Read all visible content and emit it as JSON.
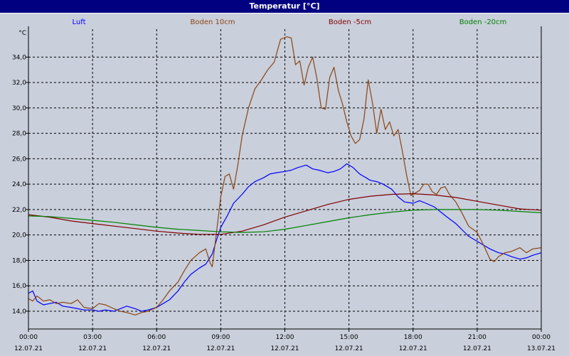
{
  "window": {
    "title": "Temperatur [°C]"
  },
  "colors": {
    "luft": "#0000ff",
    "boden_10": "#8b4513",
    "boden_5": "#800000",
    "boden_20": "#008000",
    "grid": "#000000",
    "background": "#c9cfdb"
  },
  "chart_data": {
    "type": "line",
    "title": "Temperatur [°C]",
    "ylabel": "°C",
    "xlabel": "",
    "ylim": [
      12.6,
      36.2
    ],
    "xlim": [
      0,
      24
    ],
    "grid": true,
    "legend_position": "top",
    "yticks": [
      {
        "v": 14,
        "label": "14,0"
      },
      {
        "v": 16,
        "label": "16,0"
      },
      {
        "v": 18,
        "label": "18,0"
      },
      {
        "v": 20,
        "label": "20,0"
      },
      {
        "v": 22,
        "label": "22,0"
      },
      {
        "v": 24,
        "label": "24,0"
      },
      {
        "v": 26,
        "label": "26,0"
      },
      {
        "v": 28,
        "label": "28,0"
      },
      {
        "v": 30,
        "label": "30,0"
      },
      {
        "v": 32,
        "label": "32,0"
      },
      {
        "v": 34,
        "label": "34,0"
      }
    ],
    "xticks": [
      {
        "h": 0,
        "time": "00:00",
        "date": "12.07.21"
      },
      {
        "h": 3,
        "time": "03:00",
        "date": "12.07.21"
      },
      {
        "h": 6,
        "time": "06:00",
        "date": "12.07.21"
      },
      {
        "h": 9,
        "time": "09:00",
        "date": "12.07.21"
      },
      {
        "h": 12,
        "time": "12:00",
        "date": "12.07.21"
      },
      {
        "h": 15,
        "time": "15:00",
        "date": "12.07.21"
      },
      {
        "h": 18,
        "time": "18:00",
        "date": "12.07.21"
      },
      {
        "h": 21,
        "time": "21:00",
        "date": "12.07.21"
      },
      {
        "h": 24,
        "time": "00:00",
        "date": "13.07.21"
      }
    ],
    "series": [
      {
        "name": "Luft",
        "color": "#0000ff",
        "points": [
          [
            0,
            15.4
          ],
          [
            0.2,
            15.6
          ],
          [
            0.4,
            14.8
          ],
          [
            0.7,
            14.5
          ],
          [
            1,
            14.6
          ],
          [
            1.3,
            14.7
          ],
          [
            1.6,
            14.4
          ],
          [
            2,
            14.3
          ],
          [
            2.3,
            14.2
          ],
          [
            2.6,
            14.1
          ],
          [
            3,
            14.1
          ],
          [
            3.3,
            14.0
          ],
          [
            3.6,
            14.1
          ],
          [
            4,
            14.0
          ],
          [
            4.3,
            14.2
          ],
          [
            4.6,
            14.4
          ],
          [
            5,
            14.2
          ],
          [
            5.3,
            14.0
          ],
          [
            5.6,
            14.1
          ],
          [
            6,
            14.3
          ],
          [
            6.3,
            14.6
          ],
          [
            6.6,
            14.9
          ],
          [
            7,
            15.6
          ],
          [
            7.3,
            16.3
          ],
          [
            7.6,
            16.9
          ],
          [
            8,
            17.4
          ],
          [
            8.3,
            17.7
          ],
          [
            8.6,
            18.5
          ],
          [
            8.8,
            19.6
          ],
          [
            9,
            20.6
          ],
          [
            9.3,
            21.5
          ],
          [
            9.6,
            22.5
          ],
          [
            10,
            23.2
          ],
          [
            10.3,
            23.8
          ],
          [
            10.6,
            24.2
          ],
          [
            11,
            24.5
          ],
          [
            11.3,
            24.8
          ],
          [
            11.6,
            24.9
          ],
          [
            12,
            25.0
          ],
          [
            12.3,
            25.1
          ],
          [
            12.6,
            25.3
          ],
          [
            13,
            25.5
          ],
          [
            13.3,
            25.2
          ],
          [
            13.6,
            25.1
          ],
          [
            14,
            24.9
          ],
          [
            14.3,
            25.0
          ],
          [
            14.6,
            25.2
          ],
          [
            14.9,
            25.6
          ],
          [
            15.2,
            25.3
          ],
          [
            15.5,
            24.8
          ],
          [
            15.8,
            24.5
          ],
          [
            16,
            24.3
          ],
          [
            16.3,
            24.2
          ],
          [
            16.6,
            24.0
          ],
          [
            17,
            23.6
          ],
          [
            17.3,
            23.0
          ],
          [
            17.6,
            22.6
          ],
          [
            18,
            22.5
          ],
          [
            18.3,
            22.7
          ],
          [
            18.6,
            22.5
          ],
          [
            19,
            22.2
          ],
          [
            19.3,
            21.8
          ],
          [
            19.6,
            21.4
          ],
          [
            20,
            20.9
          ],
          [
            20.3,
            20.4
          ],
          [
            20.6,
            19.9
          ],
          [
            21,
            19.5
          ],
          [
            21.3,
            19.2
          ],
          [
            21.6,
            18.9
          ],
          [
            22,
            18.6
          ],
          [
            22.3,
            18.5
          ],
          [
            22.6,
            18.3
          ],
          [
            23,
            18.1
          ],
          [
            23.3,
            18.2
          ],
          [
            23.6,
            18.4
          ],
          [
            24,
            18.6
          ]
        ]
      },
      {
        "name": "Boden 10cm",
        "color": "#8b4513",
        "points": [
          [
            0,
            15.0
          ],
          [
            0.2,
            14.8
          ],
          [
            0.4,
            15.2
          ],
          [
            0.7,
            14.8
          ],
          [
            1,
            14.9
          ],
          [
            1.3,
            14.6
          ],
          [
            1.6,
            14.7
          ],
          [
            2,
            14.6
          ],
          [
            2.3,
            14.9
          ],
          [
            2.6,
            14.3
          ],
          [
            3,
            14.2
          ],
          [
            3.3,
            14.6
          ],
          [
            3.6,
            14.5
          ],
          [
            4,
            14.2
          ],
          [
            4.3,
            14.0
          ],
          [
            4.6,
            13.9
          ],
          [
            5,
            13.7
          ],
          [
            5.3,
            13.9
          ],
          [
            5.6,
            14.0
          ],
          [
            6,
            14.3
          ],
          [
            6.3,
            14.9
          ],
          [
            6.6,
            15.6
          ],
          [
            7,
            16.3
          ],
          [
            7.3,
            17.2
          ],
          [
            7.6,
            18.0
          ],
          [
            8,
            18.6
          ],
          [
            8.3,
            18.9
          ],
          [
            8.5,
            17.8
          ],
          [
            8.6,
            17.5
          ],
          [
            8.8,
            20.2
          ],
          [
            9,
            23.0
          ],
          [
            9.2,
            24.6
          ],
          [
            9.4,
            24.8
          ],
          [
            9.6,
            23.6
          ],
          [
            9.8,
            25.5
          ],
          [
            10,
            27.8
          ],
          [
            10.3,
            30.0
          ],
          [
            10.6,
            31.5
          ],
          [
            10.9,
            32.2
          ],
          [
            11.2,
            33.0
          ],
          [
            11.5,
            33.6
          ],
          [
            11.8,
            35.4
          ],
          [
            12.1,
            35.6
          ],
          [
            12.3,
            35.5
          ],
          [
            12.5,
            33.4
          ],
          [
            12.7,
            33.7
          ],
          [
            12.9,
            31.8
          ],
          [
            13.1,
            33.2
          ],
          [
            13.3,
            34.0
          ],
          [
            13.5,
            32.3
          ],
          [
            13.7,
            30.0
          ],
          [
            13.9,
            29.9
          ],
          [
            14.1,
            32.4
          ],
          [
            14.3,
            33.2
          ],
          [
            14.5,
            31.4
          ],
          [
            14.7,
            30.3
          ],
          [
            14.9,
            28.9
          ],
          [
            15.1,
            27.8
          ],
          [
            15.3,
            27.2
          ],
          [
            15.5,
            27.5
          ],
          [
            15.7,
            29.1
          ],
          [
            15.9,
            32.2
          ],
          [
            16.1,
            30.4
          ],
          [
            16.3,
            28.0
          ],
          [
            16.5,
            29.9
          ],
          [
            16.7,
            28.3
          ],
          [
            16.9,
            28.9
          ],
          [
            17.1,
            27.8
          ],
          [
            17.3,
            28.3
          ],
          [
            17.5,
            26.6
          ],
          [
            17.7,
            24.7
          ],
          [
            17.9,
            23.1
          ],
          [
            18.1,
            23.3
          ],
          [
            18.3,
            23.5
          ],
          [
            18.5,
            24.0
          ],
          [
            18.7,
            24.0
          ],
          [
            18.9,
            23.4
          ],
          [
            19.1,
            23.2
          ],
          [
            19.3,
            23.7
          ],
          [
            19.5,
            23.8
          ],
          [
            19.7,
            23.2
          ],
          [
            20,
            22.6
          ],
          [
            20.3,
            21.7
          ],
          [
            20.6,
            20.7
          ],
          [
            21,
            20.2
          ],
          [
            21.3,
            19.2
          ],
          [
            21.6,
            18.1
          ],
          [
            21.8,
            17.9
          ],
          [
            22,
            18.3
          ],
          [
            22.3,
            18.6
          ],
          [
            22.6,
            18.7
          ],
          [
            23,
            19.0
          ],
          [
            23.3,
            18.6
          ],
          [
            23.6,
            18.9
          ],
          [
            24,
            19.0
          ]
        ]
      },
      {
        "name": "Boden -5cm",
        "color": "#800000",
        "points": [
          [
            0,
            21.6
          ],
          [
            1,
            21.4
          ],
          [
            2,
            21.1
          ],
          [
            3,
            20.9
          ],
          [
            4,
            20.7
          ],
          [
            5,
            20.5
          ],
          [
            6,
            20.3
          ],
          [
            7,
            20.15
          ],
          [
            8,
            20.05
          ],
          [
            9,
            20.05
          ],
          [
            10,
            20.3
          ],
          [
            11,
            20.8
          ],
          [
            12,
            21.4
          ],
          [
            13,
            21.9
          ],
          [
            14,
            22.4
          ],
          [
            15,
            22.8
          ],
          [
            16,
            23.05
          ],
          [
            17,
            23.2
          ],
          [
            18,
            23.25
          ],
          [
            19,
            23.15
          ],
          [
            20,
            22.95
          ],
          [
            21,
            22.65
          ],
          [
            22,
            22.35
          ],
          [
            23,
            22.05
          ],
          [
            24,
            21.95
          ]
        ]
      },
      {
        "name": "Boden -20cm",
        "color": "#008000",
        "points": [
          [
            0,
            21.5
          ],
          [
            1,
            21.45
          ],
          [
            2,
            21.3
          ],
          [
            3,
            21.15
          ],
          [
            4,
            21.0
          ],
          [
            5,
            20.8
          ],
          [
            6,
            20.6
          ],
          [
            7,
            20.45
          ],
          [
            8,
            20.35
          ],
          [
            9,
            20.25
          ],
          [
            10,
            20.2
          ],
          [
            11,
            20.25
          ],
          [
            12,
            20.45
          ],
          [
            13,
            20.75
          ],
          [
            14,
            21.05
          ],
          [
            15,
            21.35
          ],
          [
            16,
            21.6
          ],
          [
            17,
            21.8
          ],
          [
            18,
            21.95
          ],
          [
            19,
            22.0
          ],
          [
            20,
            22.0
          ],
          [
            21,
            22.0
          ],
          [
            22,
            21.95
          ],
          [
            23,
            21.85
          ],
          [
            24,
            21.75
          ]
        ]
      }
    ]
  }
}
